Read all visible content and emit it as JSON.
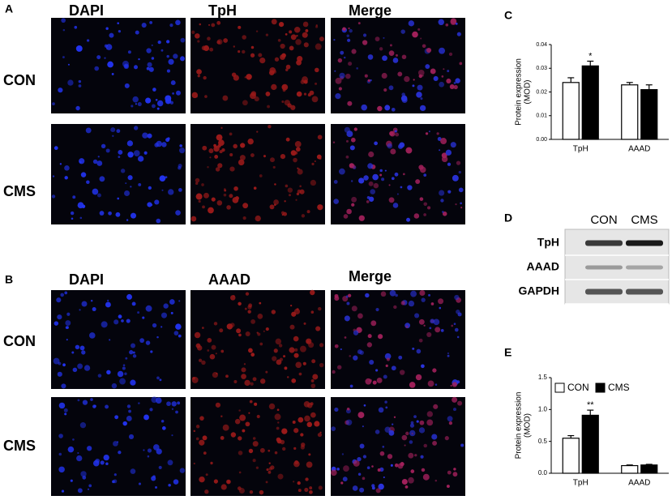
{
  "panels": [
    {
      "label": "A",
      "columns": [
        "DAPI",
        "TpH",
        "Merge"
      ],
      "rows": [
        "CON",
        "CMS"
      ]
    },
    {
      "label": "B",
      "columns": [
        "DAPI",
        "AAAD",
        "Merge"
      ],
      "rows": [
        "CON",
        "CMS"
      ]
    }
  ],
  "blot": {
    "label": "D",
    "columns": [
      "CON",
      "CMS"
    ],
    "rows": [
      "TpH",
      "AAAD",
      "GAPDH"
    ]
  },
  "chart_data": [
    {
      "type": "bar",
      "label": "C",
      "ylabel": [
        "Protein expression",
        "(MOD)"
      ],
      "categories": [
        "TpH",
        "AAAD"
      ],
      "series": [
        {
          "color": "#ffffff",
          "values": [
            0.024,
            0.023
          ],
          "errors": [
            0.002,
            0.001
          ],
          "significance": [
            null,
            null
          ]
        },
        {
          "color": "#000000",
          "values": [
            0.031,
            0.021
          ],
          "errors": [
            0.002,
            0.002
          ],
          "significance": [
            "*",
            null
          ]
        }
      ],
      "ylim": [
        0,
        0.04
      ],
      "yticks": [
        {
          "value": 0,
          "label": "0.00"
        },
        {
          "value": 0.01,
          "label": "0.01"
        },
        {
          "value": 0.02,
          "label": "0.02"
        },
        {
          "value": 0.03,
          "label": "0.03"
        },
        {
          "value": 0.04,
          "label": "0.04"
        }
      ],
      "legend": false
    },
    {
      "type": "bar",
      "label": "E",
      "ylabel": [
        "Protein expression",
        "(MOD)"
      ],
      "categories": [
        "TpH",
        "AAAD"
      ],
      "series": [
        {
          "name": "CON",
          "color": "#ffffff",
          "values": [
            0.55,
            0.12
          ],
          "errors": [
            0.04,
            0.01
          ],
          "significance": [
            null,
            null
          ]
        },
        {
          "name": "CMS",
          "color": "#000000",
          "values": [
            0.91,
            0.13
          ],
          "errors": [
            0.08,
            0.01
          ],
          "significance": [
            "**",
            null
          ]
        }
      ],
      "ylim": [
        0,
        1.5
      ],
      "yticks": [
        {
          "value": 0,
          "label": "0.0"
        },
        {
          "value": 0.5,
          "label": "0.5"
        },
        {
          "value": 1,
          "label": "1.0"
        },
        {
          "value": 1.5,
          "label": "1.5"
        }
      ],
      "legend": "top-left"
    }
  ]
}
